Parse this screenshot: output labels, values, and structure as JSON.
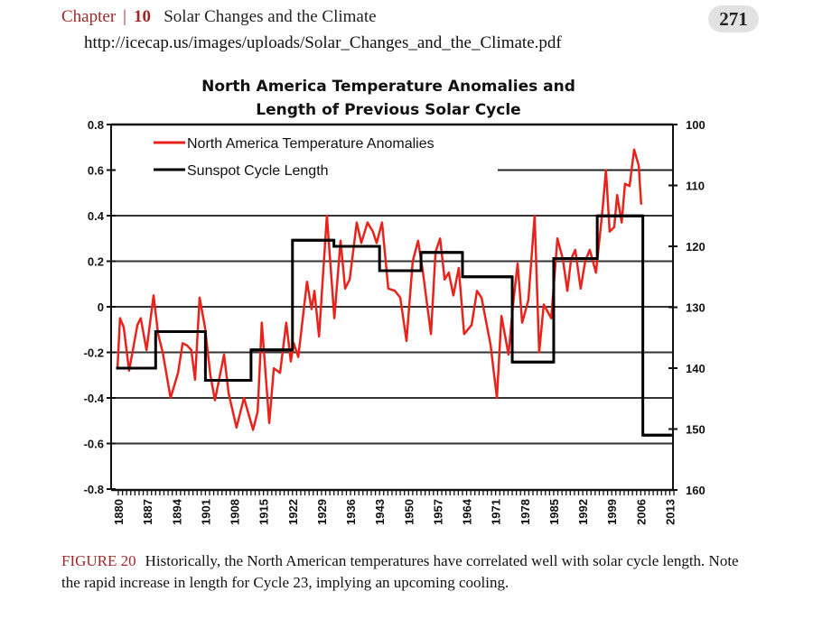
{
  "header": {
    "chapter_label": "Chapter",
    "separator": "|",
    "chapter_number": "10",
    "chapter_title": "Solar Changes and the Climate",
    "page_number": "271",
    "url": "http://icecap.us/images/uploads/Solar_Changes_and_the_Climate.pdf"
  },
  "caption": {
    "figure_label": "FIGURE 20",
    "text": "Historically, the North American temperatures have correlated well with solar cycle length. Note the rapid increase in length for Cycle 23, implying an upcoming cooling."
  },
  "chart_data": {
    "type": "line",
    "title": [
      "North America Temperature Anomalies and",
      "Length of Previous Solar Cycle"
    ],
    "xlabel": "",
    "ylabel": "",
    "xlim": [
      1880,
      2014
    ],
    "ylim": [
      -0.8,
      0.8
    ],
    "y2lim": [
      160,
      100
    ],
    "y2_inverted": true,
    "x_ticks": [
      "1880",
      "1887",
      "1894",
      "1901",
      "1908",
      "1915",
      "1922",
      "1929",
      "1936",
      "1943",
      "1950",
      "1957",
      "1964",
      "1971",
      "1978",
      "1985",
      "1992",
      "1999",
      "2006",
      "2013"
    ],
    "y_ticks": [
      "0.8",
      "0.6",
      "0.4",
      "0.2",
      "0",
      "-0.2",
      "-0.4",
      "-0.6",
      "-0.8"
    ],
    "y2_ticks": [
      "100",
      "110",
      "120",
      "130",
      "140",
      "150",
      "160"
    ],
    "grid": true,
    "legend_position": "top-left",
    "series": [
      {
        "name": "North America Temperature Anomalies",
        "color": "#e8231c",
        "axis": "left",
        "x": [
          1879.8,
          1880.4,
          1881.3,
          1882.6,
          1884.6,
          1885.4,
          1886.8,
          1888.5,
          1889.6,
          1890.7,
          1892.6,
          1894.4,
          1895.5,
          1896.6,
          1897.6,
          1898.5,
          1899.6,
          1900.9,
          1902.2,
          1903.3,
          1905.5,
          1906.6,
          1908.5,
          1910.3,
          1912.5,
          1913.6,
          1914.6,
          1916.4,
          1917.5,
          1919.0,
          1920.5,
          1921.6,
          1922.3,
          1923.4,
          1925.5,
          1926.6,
          1927.3,
          1928.4,
          1930.3,
          1932.1,
          1933.6,
          1934.7,
          1935.8,
          1937.5,
          1938.6,
          1940.1,
          1941.4,
          1942.3,
          1943.6,
          1945.1,
          1946.7,
          1948.0,
          1949.5,
          1951.0,
          1952.3,
          1953.4,
          1955.4,
          1956.5,
          1957.6,
          1958.7,
          1959.7,
          1960.8,
          1962.1,
          1963.4,
          1965.2,
          1966.5,
          1967.6,
          1969.8,
          1971.3,
          1972.4,
          1974.1,
          1975.2,
          1976.3,
          1977.4,
          1978.9,
          1980.4,
          1981.5,
          1982.6,
          1984.4,
          1985.9,
          1987.2,
          1988.3,
          1989.2,
          1990.2,
          1991.5,
          1992.6,
          1993.7,
          1995.2,
          1996.8,
          1997.6,
          1998.5,
          1999.6,
          2000.3,
          2001.4,
          2002.2,
          2003.3,
          2004.4,
          2005.5,
          2006.1
        ],
        "y": [
          -0.27,
          -0.05,
          -0.09,
          -0.28,
          -0.08,
          -0.05,
          -0.19,
          0.05,
          -0.12,
          -0.2,
          -0.4,
          -0.29,
          -0.16,
          -0.17,
          -0.19,
          -0.32,
          0.04,
          -0.09,
          -0.3,
          -0.41,
          -0.21,
          -0.38,
          -0.53,
          -0.4,
          -0.54,
          -0.46,
          -0.07,
          -0.51,
          -0.27,
          -0.29,
          -0.07,
          -0.24,
          -0.16,
          -0.22,
          0.11,
          -0.01,
          0.07,
          -0.13,
          0.4,
          -0.05,
          0.29,
          0.08,
          0.12,
          0.37,
          0.28,
          0.37,
          0.33,
          0.28,
          0.37,
          0.08,
          0.07,
          0.04,
          -0.15,
          0.2,
          0.29,
          0.16,
          -0.12,
          0.24,
          0.3,
          0.12,
          0.15,
          0.05,
          0.17,
          -0.12,
          -0.08,
          0.07,
          0.04,
          -0.17,
          -0.4,
          -0.04,
          -0.21,
          0.01,
          0.19,
          -0.07,
          0.03,
          0.4,
          -0.2,
          0.01,
          -0.05,
          0.3,
          0.21,
          0.07,
          0.21,
          0.25,
          0.08,
          0.2,
          0.25,
          0.15,
          0.43,
          0.6,
          0.33,
          0.35,
          0.49,
          0.37,
          0.54,
          0.53,
          0.69,
          0.62,
          0.45
        ]
      },
      {
        "name": "Sunspot Cycle Length",
        "color": "#000000",
        "axis": "right",
        "steps": [
          {
            "start": 1879.5,
            "end": 1889,
            "value": 140
          },
          {
            "start": 1889,
            "end": 1901,
            "value": 134
          },
          {
            "start": 1901,
            "end": 1912,
            "value": 142
          },
          {
            "start": 1912,
            "end": 1922,
            "value": 137
          },
          {
            "start": 1922,
            "end": 1932,
            "value": 119
          },
          {
            "start": 1932,
            "end": 1943,
            "value": 120
          },
          {
            "start": 1943,
            "end": 1953,
            "value": 124
          },
          {
            "start": 1953,
            "end": 1963,
            "value": 121
          },
          {
            "start": 1963,
            "end": 1975,
            "value": 125
          },
          {
            "start": 1975,
            "end": 1985,
            "value": 139
          },
          {
            "start": 1985,
            "end": 1995.5,
            "value": 122
          },
          {
            "start": 1995.5,
            "end": 2006.5,
            "value": 115
          },
          {
            "start": 2006.5,
            "end": 2013.5,
            "value": 151
          }
        ]
      }
    ]
  }
}
